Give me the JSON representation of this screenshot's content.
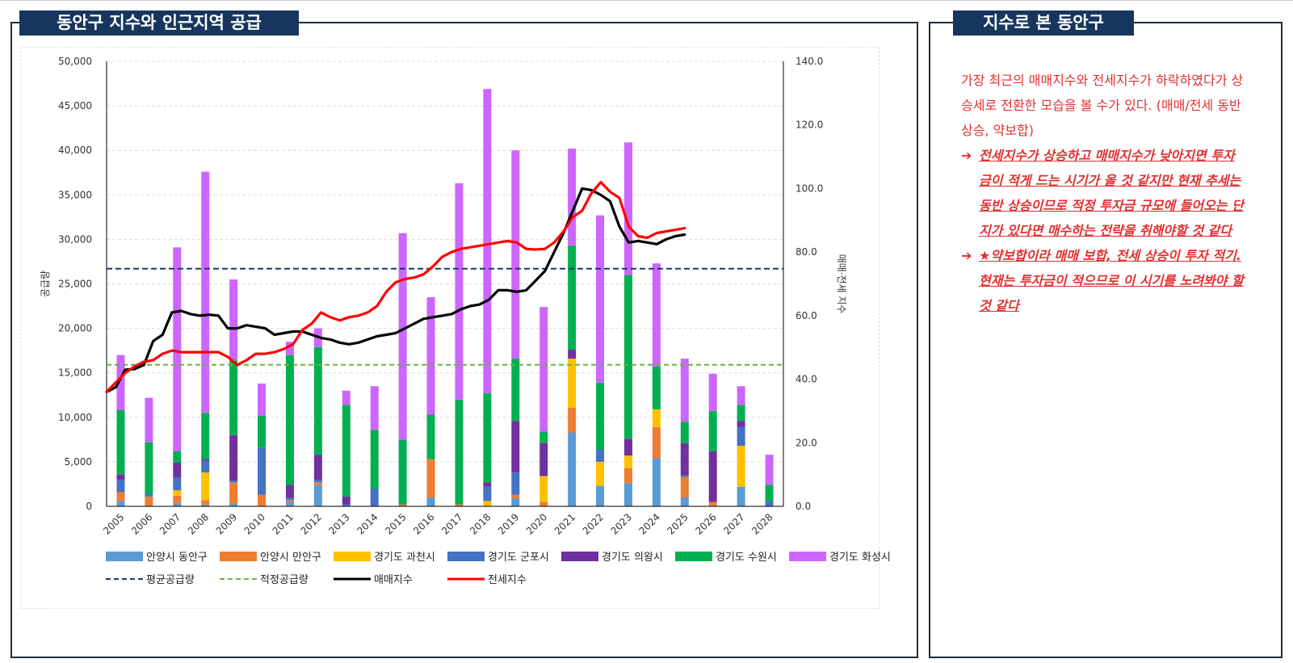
{
  "panels": {
    "left_title": "동안구 지수와 인근지역 공급",
    "right_title": "지수로 본 동안구"
  },
  "commentary": {
    "intro": "가장 최근의 매매지수와 전세지수가 하락하였다가 상승세로 전환한 모습을 볼 수가 있다. (매매/전세 동반 상승, 약보합)",
    "bullets": [
      "전세지수가 상승하고 매매지수가 낮아지면 투자금이 적게 드는 시기가 올 것 같지만 현재 추세는 동반 상승이므로 적정 투자금 규모에 들어오는 단지가 있다면 매수하는 전략을 취해야할 것 같다",
      "★약보합이라 매매 보합, 전세 상승이 투자 적기. 현재는 투자금이 적으므로 이 시기를 노려봐야 할 것 같다"
    ],
    "bullet_marker": "➔"
  },
  "chart_data": {
    "type": "bar",
    "stacked": true,
    "categories": [
      "2005",
      "2006",
      "2007",
      "2008",
      "2009",
      "2010",
      "2011",
      "2012",
      "2013",
      "2014",
      "2015",
      "2016",
      "2017",
      "2018",
      "2019",
      "2020",
      "2021",
      "2022",
      "2023",
      "2024",
      "2025",
      "2026",
      "2027",
      "2028"
    ],
    "ylabel": "공급량",
    "y2label": "매매·전세 지수",
    "ylim": [
      0,
      50000
    ],
    "y2lim": [
      0,
      140
    ],
    "yticks": [
      "0",
      "5,000",
      "10,000",
      "15,000",
      "20,000",
      "25,000",
      "30,000",
      "35,000",
      "40,000",
      "45,000",
      "50,000"
    ],
    "y2ticks": [
      "0.0",
      "20.0",
      "40.0",
      "60.0",
      "80.0",
      "100.0",
      "120.0",
      "140.0"
    ],
    "grid": true,
    "legend_position": "bottom",
    "series": [
      {
        "name": "안양시 동안구",
        "color": "#5b9bd5",
        "values": [
          600,
          0,
          300,
          200,
          300,
          0,
          500,
          2400,
          0,
          0,
          0,
          1000,
          0,
          0,
          900,
          0,
          8300,
          2300,
          2600,
          5400,
          1000,
          0,
          2200,
          0
        ]
      },
      {
        "name": "안양시 만안구",
        "color": "#ed7d31",
        "values": [
          1000,
          1100,
          900,
          500,
          2400,
          1300,
          200,
          300,
          0,
          0,
          200,
          4300,
          200,
          0,
          400,
          500,
          2800,
          0,
          1700,
          3500,
          2300,
          500,
          0,
          0
        ]
      },
      {
        "name": "경기도 과천시",
        "color": "#ffc000",
        "values": [
          0,
          0,
          600,
          3100,
          0,
          0,
          0,
          0,
          0,
          0,
          0,
          0,
          0,
          600,
          0,
          2900,
          5500,
          2700,
          1400,
          2000,
          0,
          0,
          4600,
          0
        ]
      },
      {
        "name": "경기도 군포시",
        "color": "#4472c4",
        "values": [
          1400,
          300,
          1400,
          1300,
          200,
          5300,
          300,
          300,
          200,
          2000,
          0,
          0,
          0,
          1600,
          2500,
          0,
          0,
          1400,
          0,
          0,
          200,
          0,
          2100,
          600
        ]
      },
      {
        "name": "경기도 의왕시",
        "color": "#7030a0",
        "values": [
          600,
          0,
          1700,
          200,
          5100,
          0,
          1400,
          2800,
          900,
          0,
          0,
          0,
          0,
          500,
          5800,
          3700,
          1000,
          0,
          1900,
          0,
          3600,
          5700,
          700,
          0
        ]
      },
      {
        "name": "경기도 수원시",
        "color": "#00b050",
        "values": [
          7200,
          5800,
          1300,
          5200,
          8400,
          3600,
          14600,
          12100,
          10300,
          6600,
          7300,
          5000,
          11800,
          10000,
          7000,
          1300,
          11700,
          7500,
          18400,
          4800,
          2400,
          4500,
          1800,
          1800
        ]
      },
      {
        "name": "경기도 화성시",
        "color": "#cc66ff",
        "values": [
          6200,
          5000,
          22900,
          27100,
          9100,
          3600,
          1500,
          2100,
          1600,
          4900,
          23200,
          13200,
          24300,
          34200,
          23400,
          14000,
          10900,
          18800,
          14900,
          11600,
          7100,
          4200,
          2100,
          3400
        ]
      }
    ],
    "reference_lines": [
      {
        "name": "평균공급량",
        "value": 26700,
        "color": "#1f3864",
        "dash": "dark"
      },
      {
        "name": "적정공급량",
        "value": 15900,
        "color": "#70ad47",
        "dash": "green"
      }
    ],
    "index_x_range": [
      "2005",
      "2025"
    ],
    "index_series": [
      {
        "name": "매매지수",
        "color": "#000000",
        "values": [
          36.0,
          37.5,
          43.0,
          43.2,
          44.5,
          52.0,
          54.0,
          61.0,
          61.5,
          60.5,
          60.0,
          60.3,
          60.0,
          56.0,
          56.0,
          57.0,
          56.5,
          56.0,
          54.0,
          54.5,
          55.0,
          55.0,
          54.0,
          53.0,
          52.5,
          51.5,
          51.0,
          51.5,
          52.5,
          53.5,
          54.0,
          54.5,
          56.0,
          57.5,
          59.0,
          59.5,
          60.0,
          60.5,
          62.0,
          63.0,
          63.5,
          65.0,
          68.0,
          68.0,
          67.5,
          68.0,
          71.0,
          74.0,
          80.0,
          86.0,
          93.0,
          100.0,
          99.5,
          98.0,
          96.0,
          88.0,
          83.0,
          83.5,
          83.0,
          82.5,
          84.0,
          85.0,
          85.5
        ]
      },
      {
        "name": "전세지수",
        "color": "#ff0000",
        "values": [
          36.0,
          39.0,
          42.0,
          44.0,
          45.5,
          46.0,
          48.0,
          49.0,
          48.5,
          48.5,
          48.5,
          48.5,
          48.5,
          47.0,
          44.5,
          46.0,
          48.0,
          48.0,
          48.5,
          49.5,
          51.0,
          55.5,
          57.5,
          61.0,
          59.5,
          58.5,
          59.5,
          60.0,
          61.0,
          63.0,
          67.5,
          70.5,
          71.5,
          72.0,
          73.0,
          75.5,
          78.5,
          80.0,
          81.0,
          81.5,
          82.0,
          82.5,
          83.0,
          83.5,
          83.0,
          81.0,
          80.8,
          81.0,
          83.0,
          86.5,
          91.0,
          93.0,
          98.5,
          102.0,
          99.0,
          97.0,
          88.0,
          85.0,
          84.5,
          86.0,
          86.5,
          87.0,
          87.5
        ]
      }
    ]
  }
}
